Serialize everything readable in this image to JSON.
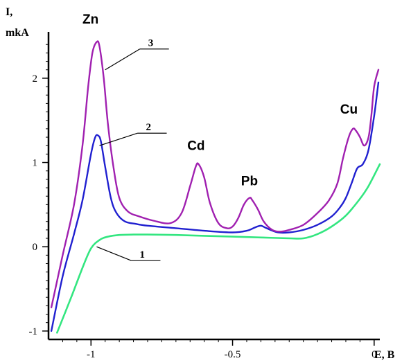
{
  "chart_data": {
    "type": "line",
    "ylabel_line1": "I,",
    "ylabel_line2": "mkA",
    "xlabel": "E, B",
    "xlim": [
      -1.15,
      0.02
    ],
    "ylim": [
      -1.1,
      2.55
    ],
    "grid": false,
    "x_ticks": [
      {
        "value": -1,
        "label": "-1"
      },
      {
        "value": -0.5,
        "label": "-0.5"
      },
      {
        "value": 0,
        "label": "0"
      }
    ],
    "y_ticks": [
      {
        "value": -1,
        "label": "-1"
      },
      {
        "value": 0,
        "label": "0"
      },
      {
        "value": 1,
        "label": "1"
      },
      {
        "value": 2,
        "label": "2"
      }
    ],
    "peak_labels": [
      {
        "text": "Zn",
        "x": -1.03,
        "y": 2.65
      },
      {
        "text": "Cd",
        "x": -0.66,
        "y": 1.15
      },
      {
        "text": "Pb",
        "x": -0.47,
        "y": 0.73
      },
      {
        "text": "Cu",
        "x": -0.12,
        "y": 1.58
      }
    ],
    "series": [
      {
        "name": "1",
        "color": "#33e680",
        "width": 2.6,
        "label_anchor": {
          "x": -0.98,
          "y": 0.0
        },
        "x": [
          -1.12,
          -1.07,
          -1.03,
          -1.0,
          -0.97,
          -0.94,
          -0.9,
          -0.85,
          -0.8,
          -0.7,
          -0.6,
          -0.5,
          -0.4,
          -0.3,
          -0.25,
          -0.2,
          -0.15,
          -0.1,
          -0.05,
          -0.02,
          0.02
        ],
        "values": [
          -1.02,
          -0.6,
          -0.25,
          -0.02,
          0.08,
          0.12,
          0.14,
          0.145,
          0.145,
          0.14,
          0.13,
          0.12,
          0.11,
          0.1,
          0.1,
          0.15,
          0.24,
          0.37,
          0.57,
          0.72,
          0.98
        ]
      },
      {
        "name": "2",
        "color": "#2020d0",
        "width": 2.4,
        "label_anchor": {
          "x": -0.97,
          "y": 1.2
        },
        "x": [
          -1.14,
          -1.1,
          -1.06,
          -1.03,
          -1.0,
          -0.985,
          -0.975,
          -0.965,
          -0.95,
          -0.93,
          -0.91,
          -0.88,
          -0.84,
          -0.8,
          -0.7,
          -0.6,
          -0.5,
          -0.45,
          -0.42,
          -0.4,
          -0.38,
          -0.34,
          -0.3,
          -0.25,
          -0.2,
          -0.15,
          -0.12,
          -0.1,
          -0.08,
          -0.06,
          -0.04,
          -0.02,
          0.0,
          0.015
        ],
        "values": [
          -1.0,
          -0.35,
          0.15,
          0.55,
          1.1,
          1.3,
          1.32,
          1.25,
          0.95,
          0.58,
          0.4,
          0.3,
          0.27,
          0.25,
          0.22,
          0.19,
          0.17,
          0.19,
          0.23,
          0.25,
          0.22,
          0.17,
          0.17,
          0.2,
          0.26,
          0.36,
          0.47,
          0.58,
          0.75,
          0.93,
          0.98,
          1.15,
          1.55,
          1.95
        ]
      },
      {
        "name": "3",
        "color": "#a020b0",
        "width": 2.4,
        "label_anchor": {
          "x": -0.95,
          "y": 2.1
        },
        "x": [
          -1.14,
          -1.1,
          -1.06,
          -1.03,
          -1.01,
          -0.995,
          -0.98,
          -0.97,
          -0.955,
          -0.94,
          -0.92,
          -0.9,
          -0.87,
          -0.83,
          -0.78,
          -0.72,
          -0.68,
          -0.65,
          -0.63,
          -0.62,
          -0.6,
          -0.58,
          -0.55,
          -0.52,
          -0.5,
          -0.48,
          -0.46,
          -0.44,
          -0.43,
          -0.41,
          -0.39,
          -0.36,
          -0.33,
          -0.3,
          -0.25,
          -0.2,
          -0.16,
          -0.13,
          -0.11,
          -0.09,
          -0.075,
          -0.065,
          -0.05,
          -0.035,
          -0.02,
          -0.01,
          0.0,
          0.015
        ],
        "values": [
          -0.72,
          -0.1,
          0.5,
          1.2,
          1.9,
          2.3,
          2.43,
          2.38,
          2.0,
          1.45,
          0.93,
          0.58,
          0.42,
          0.36,
          0.31,
          0.28,
          0.4,
          0.72,
          0.95,
          0.98,
          0.82,
          0.52,
          0.28,
          0.22,
          0.24,
          0.34,
          0.5,
          0.58,
          0.55,
          0.44,
          0.3,
          0.2,
          0.18,
          0.2,
          0.26,
          0.4,
          0.55,
          0.75,
          1.05,
          1.3,
          1.4,
          1.38,
          1.3,
          1.2,
          1.3,
          1.55,
          1.9,
          2.1
        ]
      }
    ]
  }
}
